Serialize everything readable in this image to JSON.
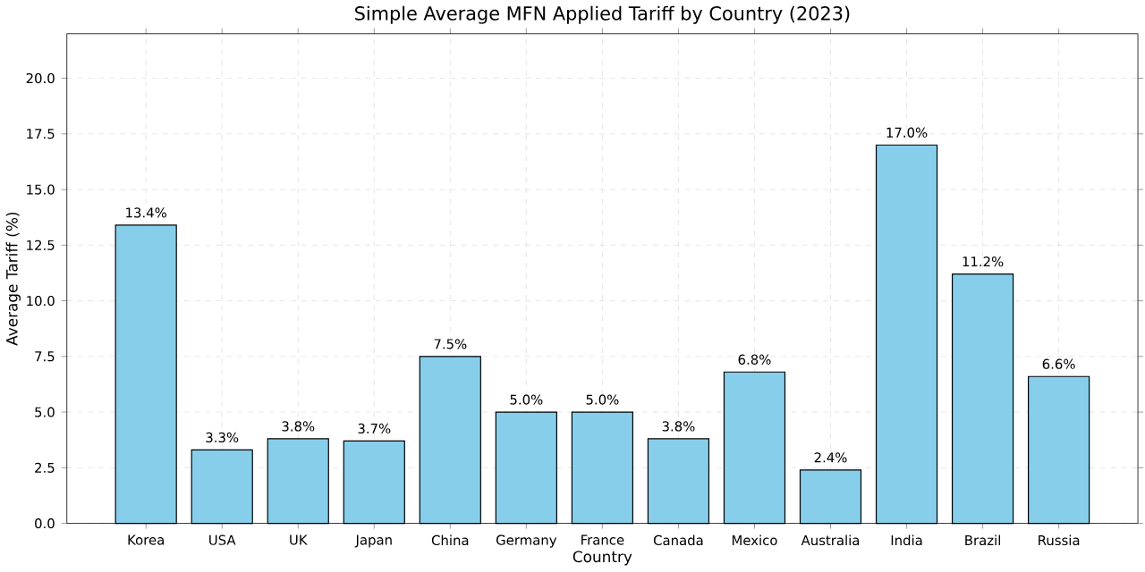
{
  "chart_data": {
    "type": "bar",
    "title": "Simple Average MFN Applied Tariff by Country (2023)",
    "xlabel": "Country",
    "ylabel": "Average Tariff (%)",
    "categories": [
      "Korea",
      "USA",
      "UK",
      "Japan",
      "China",
      "Germany",
      "France",
      "Canada",
      "Mexico",
      "Australia",
      "India",
      "Brazil",
      "Russia"
    ],
    "values": [
      13.4,
      3.3,
      3.8,
      3.7,
      7.5,
      5.0,
      5.0,
      3.8,
      6.8,
      2.4,
      17.0,
      11.2,
      6.6
    ],
    "value_labels": [
      "13.4%",
      "3.3%",
      "3.8%",
      "3.7%",
      "7.5%",
      "5.0%",
      "5.0%",
      "3.8%",
      "6.8%",
      "2.4%",
      "17.0%",
      "11.2%",
      "6.6%"
    ],
    "color": "#87ceeb",
    "ylim": [
      0,
      22
    ],
    "yticks": [
      {
        "value": 0,
        "label": "0.0"
      },
      {
        "value": 2.5,
        "label": "2.5"
      },
      {
        "value": 5,
        "label": "5.0"
      },
      {
        "value": 7.5,
        "label": "7.5"
      },
      {
        "value": 10,
        "label": "10.0"
      },
      {
        "value": 12.5,
        "label": "12.5"
      },
      {
        "value": 15,
        "label": "15.0"
      },
      {
        "value": 17.5,
        "label": "17.5"
      },
      {
        "value": 20,
        "label": "20.0"
      }
    ],
    "grid": true
  }
}
